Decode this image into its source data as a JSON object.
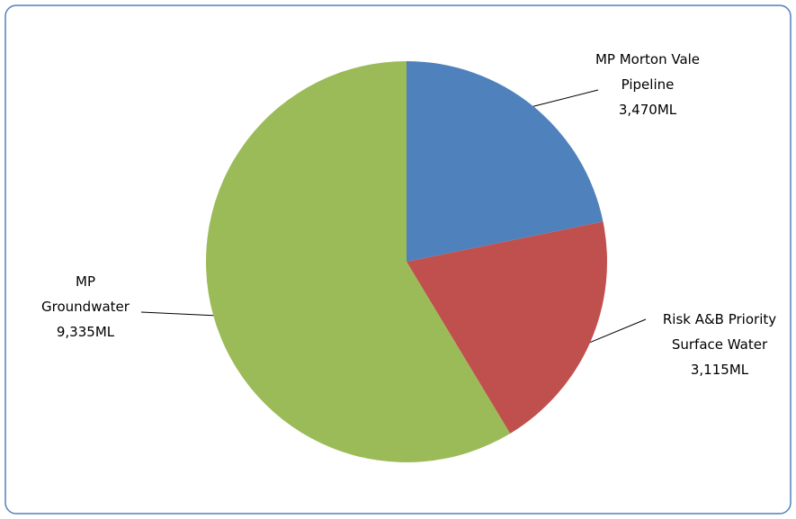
{
  "chart_data": {
    "type": "pie",
    "categories": [
      "MP Morton Vale Pipeline",
      "Risk A&B Priority Surface Water",
      "MP Groundwater"
    ],
    "values": [
      3470,
      3115,
      9335
    ],
    "value_labels": [
      "3,470ML",
      "3,115ML",
      "9,335ML"
    ],
    "colors": [
      "#4f81bd",
      "#c0504d",
      "#9bbb59"
    ]
  }
}
